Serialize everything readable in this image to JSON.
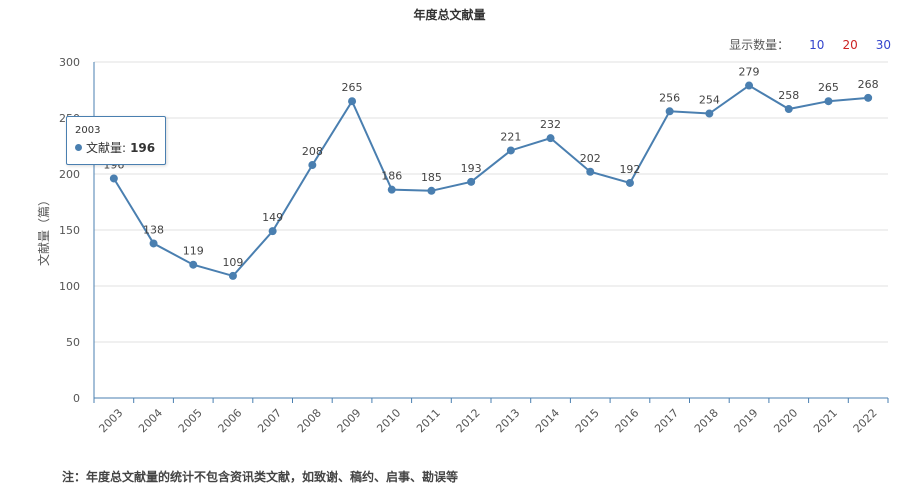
{
  "title": "年度总文献量",
  "display_count": {
    "label": "显示数量：",
    "options": [
      {
        "label": "10",
        "color": "#3344cc"
      },
      {
        "label": "20",
        "color": "#cc2222"
      },
      {
        "label": "30",
        "color": "#3344cc"
      }
    ]
  },
  "footnote": "注：年度总文献量的统计不包含资讯类文献，如致谢、稿约、启事、勘误等",
  "tooltip": {
    "year": "2003",
    "series": "文献量",
    "value": "196"
  },
  "chart_data": {
    "type": "line",
    "title": "年度总文献量",
    "xlabel": "",
    "ylabel": "文献量（篇）",
    "x": [
      "2003",
      "2004",
      "2005",
      "2006",
      "2007",
      "2008",
      "2009",
      "2010",
      "2011",
      "2012",
      "2013",
      "2014",
      "2015",
      "2016",
      "2017",
      "2018",
      "2019",
      "2020",
      "2021",
      "2022"
    ],
    "series": [
      {
        "name": "文献量",
        "color": "#4a7fb0",
        "values": [
          196,
          138,
          119,
          109,
          149,
          208,
          265,
          186,
          185,
          193,
          221,
          232,
          202,
          192,
          256,
          254,
          279,
          258,
          265,
          268
        ]
      }
    ],
    "ylim": [
      0,
      300
    ],
    "yticks": [
      0,
      50,
      100,
      150,
      200,
      250,
      300
    ],
    "grid": true
  }
}
